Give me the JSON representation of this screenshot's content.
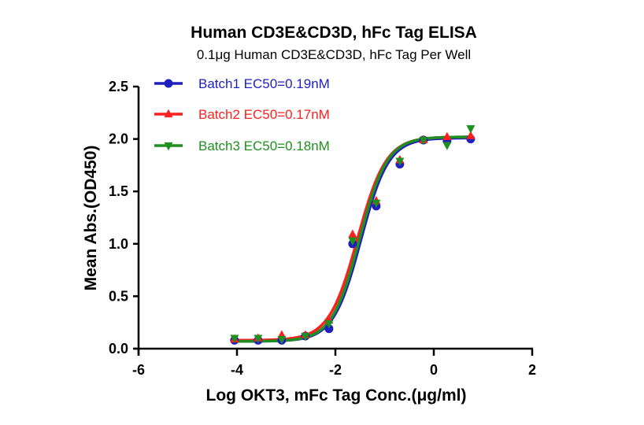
{
  "chart_data": {
    "type": "scatter",
    "title": "Human CD3E&CD3D, hFc Tag ELISA",
    "subtitle": "0.1μg Human CD3E&CD3D, hFc Tag  Per Well",
    "xlabel": "Log OKT3, mFc Tag Conc.(μg/ml)",
    "ylabel": "Mean Abs.(OD450)",
    "xlim": [
      -6,
      2
    ],
    "ylim": [
      0,
      2.5
    ],
    "xticks": [
      "-6",
      "-4",
      "-2",
      "0",
      "2"
    ],
    "yticks": [
      "0.0",
      "0.5",
      "1.0",
      "1.5",
      "2.0",
      "2.5"
    ],
    "xtick_values": [
      -6,
      -4,
      -2,
      0,
      2
    ],
    "ytick_values": [
      0,
      0.5,
      1.0,
      1.5,
      2.0,
      2.5
    ],
    "grid": false,
    "legend_position": "top-left",
    "x": [
      -4.05,
      -3.57,
      -3.09,
      -2.61,
      -2.13,
      -1.65,
      -1.17,
      -0.69,
      -0.21,
      0.27,
      0.75
    ],
    "series": [
      {
        "name": "Batch1 EC50=0.19nM",
        "color": "#1f1fbf",
        "marker": "circle",
        "values": [
          0.08,
          0.08,
          0.08,
          0.12,
          0.19,
          1.0,
          1.36,
          1.76,
          1.99,
          1.98,
          2.0
        ],
        "fit": {
          "bottom": 0.07,
          "top": 2.01,
          "logEC50": -1.48,
          "hill": 1.55
        }
      },
      {
        "name": "Batch2 EC50=0.17nM",
        "color": "#ff1f1f",
        "marker": "triangle-up",
        "values": [
          0.09,
          0.1,
          0.13,
          0.13,
          0.27,
          1.09,
          1.41,
          1.8,
          1.99,
          2.02,
          2.03
        ],
        "fit": {
          "bottom": 0.08,
          "top": 2.02,
          "logEC50": -1.55,
          "hill": 1.5
        }
      },
      {
        "name": "Batch3 EC50=0.18nM",
        "color": "#1f8f1f",
        "marker": "triangle-down",
        "values": [
          0.1,
          0.1,
          0.09,
          0.12,
          0.24,
          1.03,
          1.39,
          1.79,
          1.99,
          1.94,
          2.1
        ],
        "fit": {
          "bottom": 0.07,
          "top": 2.02,
          "logEC50": -1.51,
          "hill": 1.55
        }
      }
    ]
  }
}
